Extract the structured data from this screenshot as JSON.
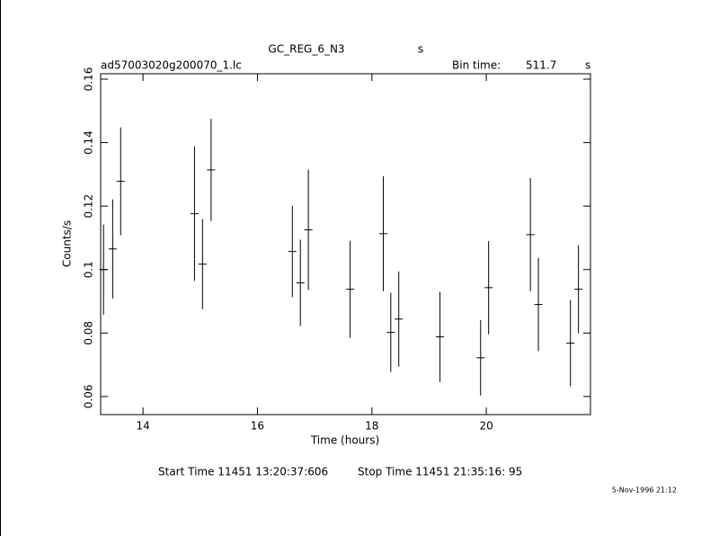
{
  "chart_data": {
    "type": "errorbar",
    "title": "GC_REG_6_N3",
    "title_unit": "s",
    "subtitle": "ad57003020g200070_1.lc",
    "bin_time_label": "Bin time:",
    "bin_time": "511.7",
    "bin_time_unit": "s",
    "x_label": "Time (hours)",
    "y_label": "Counts/s",
    "start_time": "Start Time 11451 13:20:37:606",
    "stop_time": "Stop Time 11451 21:35:16: 95",
    "timestamp": "5-Nov-1996 21:12",
    "color": "#000000",
    "x": [
      13.31,
      13.47,
      13.61,
      14.9,
      15.04,
      15.19,
      16.61,
      16.75,
      16.89,
      17.62,
      18.2,
      18.33,
      18.47,
      19.19,
      19.9,
      20.04,
      20.77,
      20.91,
      21.47,
      21.61
    ],
    "xerr": [
      0.071,
      0.071,
      0.071,
      0.071,
      0.071,
      0.071,
      0.071,
      0.071,
      0.071,
      0.071,
      0.071,
      0.071,
      0.071,
      0.071,
      0.071,
      0.071,
      0.071,
      0.071,
      0.071,
      0.071
    ],
    "values": [
      0.1,
      0.1065,
      0.1278,
      0.1176,
      0.1017,
      0.1314,
      0.1057,
      0.0958,
      0.1125,
      0.0938,
      0.1113,
      0.0802,
      0.0844,
      0.0788,
      0.0722,
      0.0943,
      0.111,
      0.089,
      0.0768,
      0.0938
    ],
    "yerr": [
      0.0142,
      0.0156,
      0.017,
      0.0212,
      0.0142,
      0.0161,
      0.0144,
      0.0136,
      0.019,
      0.0153,
      0.0181,
      0.0125,
      0.015,
      0.0142,
      0.0119,
      0.0147,
      0.0178,
      0.0147,
      0.0136,
      0.0139
    ],
    "xlim": [
      13.26,
      21.82
    ],
    "xticks": [
      14,
      16,
      18,
      20
    ],
    "ylim": [
      0.0543,
      0.1617
    ],
    "yticks": [
      0.06,
      0.08,
      0.1,
      0.12,
      0.14,
      0.16
    ]
  }
}
